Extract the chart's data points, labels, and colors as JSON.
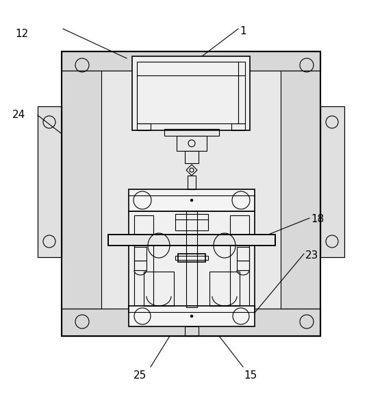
{
  "bg_color": "#ffffff",
  "line_color": "#000000",
  "gray_color": "#d0d0d0",
  "label_fontsize": 11,
  "figsize": [
    5.58,
    5.92
  ],
  "dpi": 100
}
